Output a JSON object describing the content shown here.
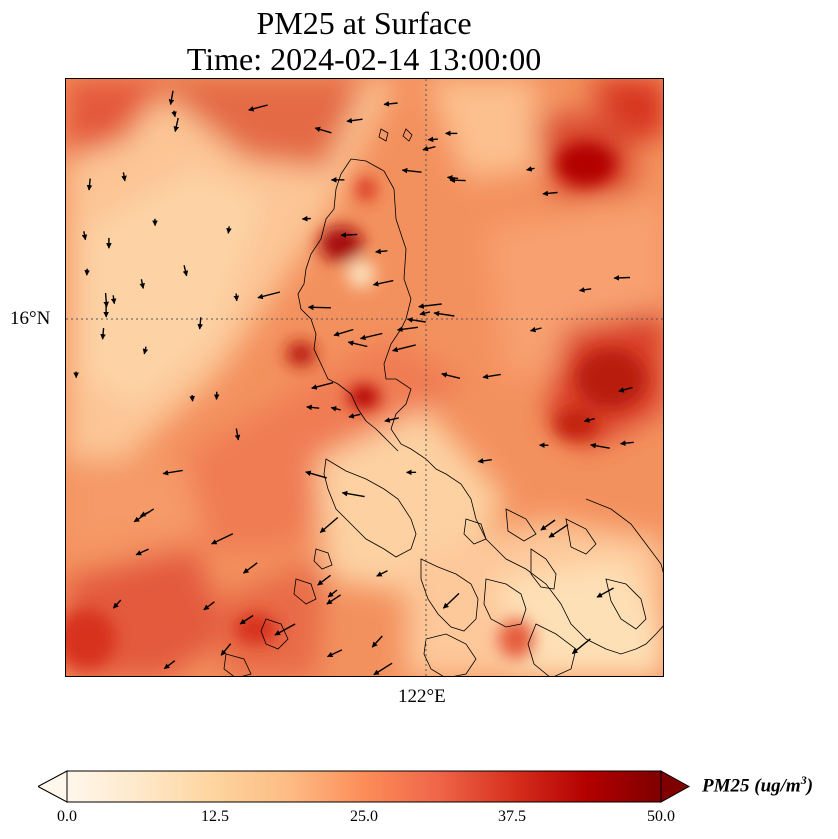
{
  "title": {
    "line1": "PM25 at Surface",
    "line2": "Time: 2024-02-14 13:00:00"
  },
  "axes": {
    "lat_label": "16°N",
    "lon_label": "122°E"
  },
  "colorbar": {
    "label": "PM25 (ug/m",
    "label_sup": "3",
    "label_close": ")",
    "ticks": [
      "0.0",
      "12.5",
      "25.0",
      "37.5",
      "50.0"
    ],
    "range": [
      0,
      50
    ],
    "extend": "both",
    "colormap": "OrRd",
    "colors": [
      "#fff7ec",
      "#fee8c8",
      "#fdd49e",
      "#fdbb84",
      "#fc8d59",
      "#ef6548",
      "#d7301f",
      "#b30000",
      "#7f0000"
    ]
  },
  "map": {
    "variable": "PM25",
    "level": "Surface",
    "gridlines": "dotted",
    "overlays": [
      "coastlines",
      "wind-vectors"
    ]
  }
}
